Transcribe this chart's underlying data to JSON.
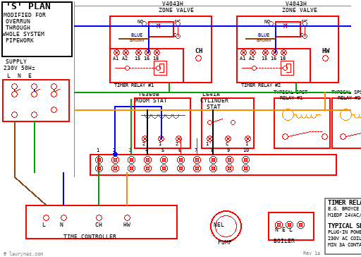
{
  "bg": "#ffffff",
  "red": "#ff0000",
  "blue": "#0000ff",
  "green": "#00aa00",
  "brown": "#8B4513",
  "orange": "#ff8800",
  "gray": "#888888",
  "black": "#000000",
  "darkgray": "#444444",
  "lightgray": "#cccccc"
}
